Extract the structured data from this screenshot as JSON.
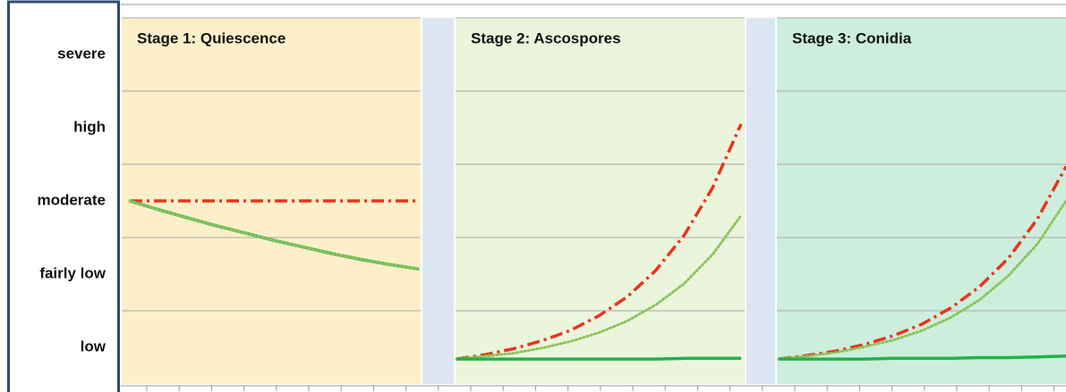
{
  "chart_data": {
    "type": "line",
    "ylim": [
      0.5,
      5.5
    ],
    "yticks": [
      {
        "value": 1,
        "label": "low"
      },
      {
        "value": 2,
        "label": "fairly low"
      },
      {
        "value": 3,
        "label": "moderate"
      },
      {
        "value": 4,
        "label": "high"
      },
      {
        "value": 5,
        "label": "severe"
      }
    ],
    "grid": true,
    "xlim": [
      0,
      10
    ],
    "panels": [
      {
        "title": "Stage 1: Quiescence",
        "background": "#fdefc9",
        "x": [
          0,
          1,
          2,
          3,
          4,
          5,
          6,
          7,
          8,
          9,
          10
        ],
        "series": [
          {
            "color": "#e8341c",
            "style": "dashdot",
            "values": [
              3,
              3,
              3,
              3,
              3,
              3,
              3,
              3,
              3,
              3,
              3
            ]
          },
          {
            "color": "#22a84a",
            "style": "solid",
            "values": [
              3,
              2.88,
              2.77,
              2.66,
              2.56,
              2.46,
              2.37,
              2.28,
              2.2,
              2.13,
              2.07
            ]
          },
          {
            "color": "#8cc45a",
            "style": "dotted",
            "values": [
              3,
              2.88,
              2.77,
              2.66,
              2.56,
              2.46,
              2.37,
              2.28,
              2.2,
              2.13,
              2.07
            ]
          }
        ]
      },
      {
        "title": "Stage 2: Ascospores",
        "background": "#ebf5dc",
        "x": [
          0,
          1,
          2,
          3,
          4,
          5,
          6,
          7,
          8,
          9,
          10
        ],
        "series": [
          {
            "color": "#e8341c",
            "style": "dashdot",
            "values": [
              0.84,
              0.9,
              0.98,
              1.09,
              1.23,
              1.43,
              1.69,
              2.05,
              2.53,
              3.18,
              4.05
            ]
          },
          {
            "color": "#8cc45a",
            "style": "dotted",
            "values": [
              0.84,
              0.88,
              0.92,
              0.99,
              1.08,
              1.2,
              1.36,
              1.58,
              1.87,
              2.27,
              2.8
            ]
          },
          {
            "color": "#22b24c",
            "style": "solid",
            "values": [
              0.84,
              0.84,
              0.84,
              0.84,
              0.84,
              0.84,
              0.84,
              0.84,
              0.85,
              0.85,
              0.85
            ]
          }
        ]
      },
      {
        "title": "Stage 3: Conidia",
        "background": "#cdeedd",
        "x": [
          0,
          1,
          2,
          3,
          4,
          5,
          6,
          7,
          8,
          9,
          10
        ],
        "series": [
          {
            "color": "#e8341c",
            "style": "dashdot",
            "values": [
              0.84,
              0.89,
              0.95,
              1.04,
              1.16,
              1.32,
              1.54,
              1.83,
              2.22,
              2.75,
              3.47
            ]
          },
          {
            "color": "#8cc45a",
            "style": "dotted",
            "values": [
              0.84,
              0.88,
              0.93,
              1.01,
              1.1,
              1.23,
              1.41,
              1.65,
              1.98,
              2.41,
              3.0
            ]
          },
          {
            "color": "#22b24c",
            "style": "solid",
            "values": [
              0.84,
              0.84,
              0.84,
              0.84,
              0.85,
              0.85,
              0.85,
              0.86,
              0.86,
              0.87,
              0.88
            ]
          }
        ]
      }
    ]
  }
}
